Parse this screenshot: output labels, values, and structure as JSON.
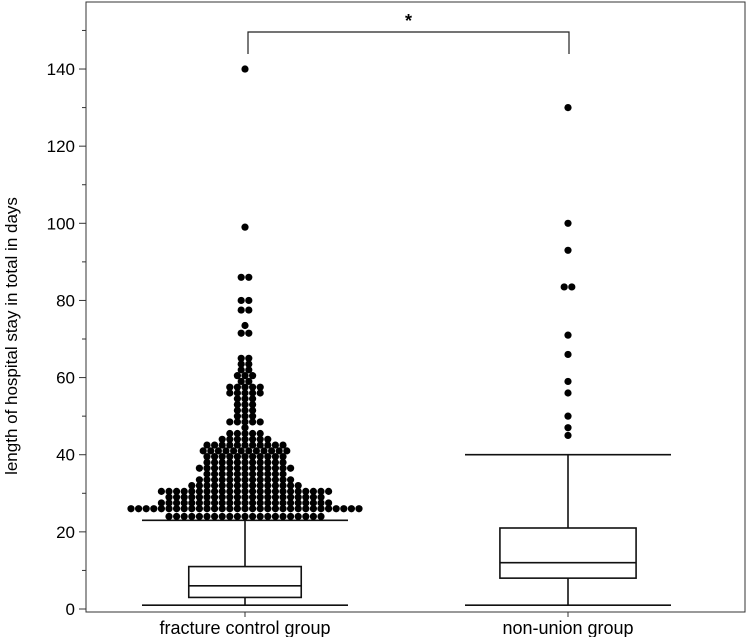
{
  "chart_data": {
    "type": "box",
    "ylabel": "length of hospital stay in total in days",
    "xlabel": "",
    "ylim": [
      0,
      155
    ],
    "yticks": [
      0,
      20,
      40,
      60,
      80,
      100,
      120,
      140
    ],
    "y_minor_step": 10,
    "grid": false,
    "categories": [
      "fracture control group",
      "non-union group"
    ],
    "significance": {
      "between": [
        0,
        1
      ],
      "label": "*"
    },
    "boxes": [
      {
        "name": "fracture control group",
        "whisker_low": 1,
        "q1": 3,
        "median": 6,
        "q3": 11,
        "whisker_high": 23,
        "outliers": [
          24,
          24,
          24,
          24,
          24,
          24,
          24,
          24,
          24,
          24,
          24,
          24,
          24,
          24,
          24,
          24,
          24,
          24,
          24,
          24,
          24,
          26,
          26,
          26,
          26,
          26,
          26,
          26,
          26,
          26,
          26,
          26,
          26,
          26,
          26,
          26,
          26,
          26,
          26,
          26,
          26,
          26,
          26,
          26,
          26,
          26,
          26,
          26,
          26,
          26,
          26,
          26,
          27.5,
          27.5,
          27.5,
          27.5,
          27.5,
          27.5,
          27.5,
          27.5,
          27.5,
          27.5,
          27.5,
          27.5,
          27.5,
          27.5,
          27.5,
          27.5,
          27.5,
          27.5,
          27.5,
          27.5,
          27.5,
          27.5,
          27.5,
          29,
          29,
          29,
          29,
          29,
          29,
          29,
          29,
          29,
          29,
          29,
          29,
          29,
          29,
          29,
          29,
          29,
          29,
          29,
          29,
          29,
          30.5,
          30.5,
          30.5,
          30.5,
          30.5,
          30.5,
          30.5,
          30.5,
          30.5,
          30.5,
          30.5,
          30.5,
          30.5,
          30.5,
          30.5,
          30.5,
          30.5,
          30.5,
          30.5,
          30.5,
          30.5,
          30.5,
          30.5,
          32,
          32,
          32,
          32,
          32,
          32,
          32,
          32,
          32,
          32,
          32,
          32,
          32,
          32,
          32,
          33.5,
          33.5,
          33.5,
          33.5,
          33.5,
          33.5,
          33.5,
          33.5,
          33.5,
          33.5,
          33.5,
          33.5,
          33.5,
          35,
          35,
          35,
          35,
          35,
          35,
          35,
          35,
          35,
          35,
          35,
          36.5,
          36.5,
          36.5,
          36.5,
          36.5,
          36.5,
          36.5,
          36.5,
          36.5,
          36.5,
          36.5,
          36.5,
          36.5,
          38,
          38,
          38,
          38,
          38,
          38,
          38,
          38,
          38,
          38,
          38,
          39.5,
          39.5,
          39.5,
          39.5,
          39.5,
          39.5,
          39.5,
          39.5,
          39.5,
          39.5,
          39.5,
          41,
          41,
          41,
          41,
          41,
          41,
          41,
          41,
          41,
          41,
          41,
          41,
          42.5,
          42.5,
          42.5,
          42.5,
          42.5,
          42.5,
          42.5,
          42.5,
          42.5,
          42.5,
          42.5,
          44,
          44,
          44,
          44,
          44,
          44,
          44,
          45.5,
          45.5,
          45.5,
          45.5,
          45.5,
          47,
          48.5,
          48.5,
          48.5,
          48.5,
          48.5,
          50,
          50,
          50,
          51.5,
          51.5,
          51.5,
          53,
          53,
          53,
          54.5,
          54.5,
          54.5,
          56,
          56,
          56,
          56,
          56,
          57.5,
          57.5,
          57.5,
          57.5,
          57.5,
          59,
          59,
          60.5,
          60.5,
          60.5,
          62,
          62,
          63.5,
          63.5,
          65,
          65,
          71.5,
          71.5,
          73.5,
          77.5,
          77.5,
          80,
          80,
          86,
          86,
          99,
          140
        ]
      },
      {
        "name": "non-union group",
        "whisker_low": 1,
        "q1": 8,
        "median": 12,
        "q3": 21,
        "whisker_high": 40,
        "outliers": [
          45,
          47,
          50,
          56,
          59,
          66,
          71,
          83.5,
          83.5,
          93,
          100,
          130
        ]
      }
    ]
  }
}
